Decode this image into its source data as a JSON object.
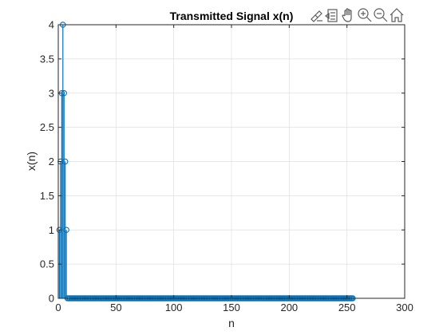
{
  "chart_data": {
    "type": "stem",
    "title": "Transmitted Signal x(n)",
    "xlabel": "n",
    "ylabel": "x(n)",
    "xlim": [
      0,
      300
    ],
    "ylim": [
      0,
      4
    ],
    "xticks": [
      0,
      50,
      100,
      150,
      200,
      250,
      300
    ],
    "yticks": [
      0,
      0.5,
      1,
      1.5,
      2,
      2.5,
      3,
      3.5,
      4
    ],
    "xtick_labels": [
      "0",
      "50",
      "100",
      "150",
      "200",
      "250",
      "300"
    ],
    "ytick_labels": [
      "0",
      "0.5",
      "1",
      "1.5",
      "2",
      "2.5",
      "3",
      "3.5",
      "4"
    ],
    "grid": true,
    "marker": "circle",
    "color": "#0072bd",
    "series": [
      {
        "x_start": 1,
        "values": [
          1,
          2,
          3,
          4,
          3,
          2,
          1
        ],
        "tail_zero_until": 255
      }
    ]
  },
  "toolbar": {
    "icons": [
      "brush-icon",
      "data-tips-icon",
      "pan-icon",
      "zoom-in-icon",
      "zoom-out-icon",
      "home-icon"
    ]
  }
}
